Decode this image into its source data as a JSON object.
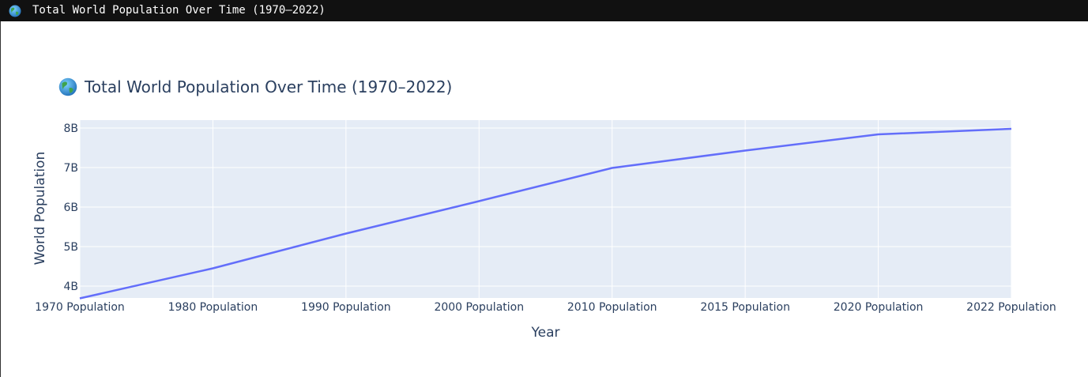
{
  "window": {
    "title": "Total World Population Over Time (1970–2022)",
    "icon": "globe-icon"
  },
  "chart_data": {
    "type": "line",
    "title": "Total World Population Over Time (1970–2022)",
    "title_icon": "globe-icon",
    "xlabel": "Year",
    "ylabel": "World Population",
    "categories": [
      "1970 Population",
      "1980 Population",
      "1990 Population",
      "2000 Population",
      "2010 Population",
      "2015 Population",
      "2020 Population",
      "2022 Population"
    ],
    "values": [
      3690000000,
      4450000000,
      5330000000,
      6150000000,
      6990000000,
      7430000000,
      7840000000,
      7980000000
    ],
    "ylim": [
      3700000000,
      8200000000
    ],
    "yticks": [
      4000000000,
      5000000000,
      6000000000,
      7000000000,
      8000000000
    ],
    "ytick_labels": [
      "4B",
      "5B",
      "6B",
      "7B",
      "8B"
    ],
    "grid": true,
    "colors": {
      "line": "#636efa",
      "plot_bg": "#e5ecf6",
      "grid": "#ffffff",
      "text": "#2a3f5f"
    }
  }
}
